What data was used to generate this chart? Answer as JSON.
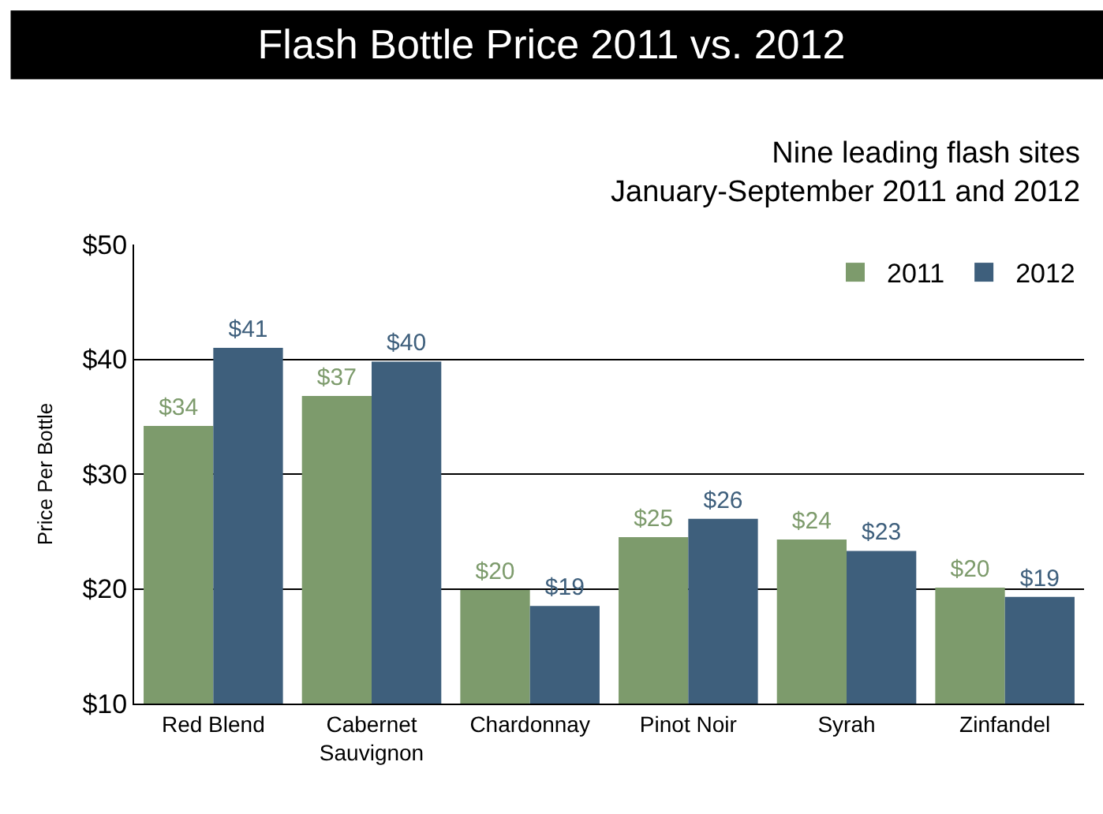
{
  "chart_data": {
    "type": "bar",
    "title": "Flash Bottle Price 2011 vs. 2012",
    "subtitle": "Nine leading flash sites\nJanuary-September 2011 and 2012",
    "ylabel": "Price Per Bottle",
    "categories": [
      "Red Blend",
      "Cabernet\nSauvignon",
      "Chardonnay",
      "Pinot Noir",
      "Syrah",
      "Zinfandel"
    ],
    "series": [
      {
        "name": "2011",
        "color": "#7d9b6c",
        "values": [
          34.2,
          36.8,
          19.9,
          24.5,
          24.3,
          20.1
        ],
        "value_labels": [
          "$34",
          "$37",
          "$20",
          "$25",
          "$24",
          "$20"
        ]
      },
      {
        "name": "2012",
        "color": "#3e5f7c",
        "values": [
          41,
          39.8,
          18.5,
          26.1,
          23.3,
          19.3
        ],
        "value_labels": [
          "$41",
          "$40",
          "$19",
          "$26",
          "$23",
          "$19"
        ]
      }
    ],
    "ylim": [
      10,
      50
    ],
    "yticks": [
      {
        "value": 10,
        "label": "$10"
      },
      {
        "value": 20,
        "label": "$20"
      },
      {
        "value": 30,
        "label": "$30"
      },
      {
        "value": 40,
        "label": "$40"
      },
      {
        "value": 50,
        "label": "$50"
      }
    ],
    "grid": "y",
    "legend": "top right"
  }
}
